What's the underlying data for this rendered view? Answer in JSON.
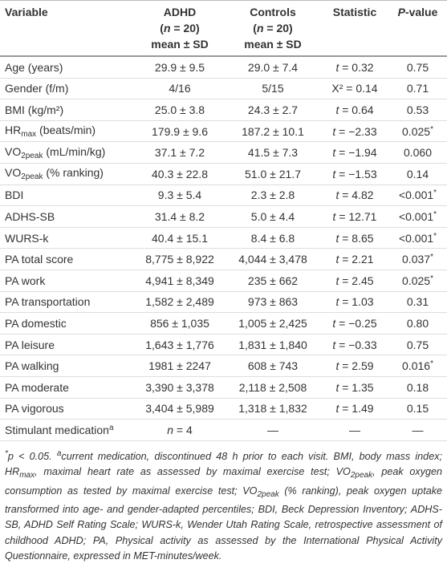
{
  "table": {
    "header": [
      [
        [
          {
            "r": "Variable"
          }
        ]
      ],
      [
        [
          {
            "r": "ADHD"
          }
        ],
        [
          {
            "r": "("
          },
          {
            "i": "n"
          },
          {
            "r": " = 20)"
          }
        ],
        [
          {
            "r": "mean ± SD"
          }
        ]
      ],
      [
        [
          {
            "r": "Controls"
          }
        ],
        [
          {
            "r": "("
          },
          {
            "i": "n"
          },
          {
            "r": " = 20)"
          }
        ],
        [
          {
            "r": "mean ± SD"
          }
        ]
      ],
      [
        [
          {
            "r": "Statistic"
          }
        ]
      ],
      [
        [
          {
            "i": "P"
          },
          {
            "r": "-value"
          }
        ]
      ]
    ],
    "rows": [
      [
        [
          {
            "r": "Age (years)"
          }
        ],
        [
          {
            "r": "29.9 ± 9.5"
          }
        ],
        [
          {
            "r": "29.0 ± 7.4"
          }
        ],
        [
          {
            "i": "t"
          },
          {
            "r": " = 0.32"
          }
        ],
        [
          {
            "r": "0.75"
          }
        ]
      ],
      [
        [
          {
            "r": "Gender (f/m)"
          }
        ],
        [
          {
            "r": "4/16"
          }
        ],
        [
          {
            "r": "5/15"
          }
        ],
        [
          {
            "r": "X² = 0.14"
          }
        ],
        [
          {
            "r": "0.71"
          }
        ]
      ],
      [
        [
          {
            "r": "BMI (kg/m²)"
          }
        ],
        [
          {
            "r": "25.0 ± 3.8"
          }
        ],
        [
          {
            "r": "24.3 ± 2.7"
          }
        ],
        [
          {
            "i": "t"
          },
          {
            "r": " = 0.64"
          }
        ],
        [
          {
            "r": "0.53"
          }
        ]
      ],
      [
        [
          {
            "r": "HR"
          },
          {
            "sub": "max"
          },
          {
            "r": " (beats/min)"
          }
        ],
        [
          {
            "r": "179.9 ± 9.6"
          }
        ],
        [
          {
            "r": "187.2 ± 10.1"
          }
        ],
        [
          {
            "i": "t"
          },
          {
            "r": " = −2.33"
          }
        ],
        [
          {
            "r": "0.025"
          },
          {
            "sup": "*"
          }
        ]
      ],
      [
        [
          {
            "r": "VO"
          },
          {
            "sub": "2peak"
          },
          {
            "r": " (mL/min/kg)"
          }
        ],
        [
          {
            "r": "37.1 ± 7.2"
          }
        ],
        [
          {
            "r": "41.5 ± 7.3"
          }
        ],
        [
          {
            "i": "t"
          },
          {
            "r": " = −1.94"
          }
        ],
        [
          {
            "r": "0.060"
          }
        ]
      ],
      [
        [
          {
            "r": "VO"
          },
          {
            "sub": "2peak"
          },
          {
            "r": " (% ranking)"
          }
        ],
        [
          {
            "r": "40.3 ± 22.8"
          }
        ],
        [
          {
            "r": "51.0 ± 21.7"
          }
        ],
        [
          {
            "i": "t"
          },
          {
            "r": " = −1.53"
          }
        ],
        [
          {
            "r": "0.14"
          }
        ]
      ],
      [
        [
          {
            "r": "BDI"
          }
        ],
        [
          {
            "r": "9.3 ± 5.4"
          }
        ],
        [
          {
            "r": "2.3 ± 2.8"
          }
        ],
        [
          {
            "i": "t"
          },
          {
            "r": " = 4.82"
          }
        ],
        [
          {
            "r": "<0.001"
          },
          {
            "sup": "*"
          }
        ]
      ],
      [
        [
          {
            "r": "ADHS-SB"
          }
        ],
        [
          {
            "r": "31.4 ± 8.2"
          }
        ],
        [
          {
            "r": "5.0 ± 4.4"
          }
        ],
        [
          {
            "i": "t"
          },
          {
            "r": " = 12.71"
          }
        ],
        [
          {
            "r": "<0.001"
          },
          {
            "sup": "*"
          }
        ]
      ],
      [
        [
          {
            "r": "WURS-k"
          }
        ],
        [
          {
            "r": "40.4 ± 15.1"
          }
        ],
        [
          {
            "r": "8.4 ± 6.8"
          }
        ],
        [
          {
            "i": "t"
          },
          {
            "r": " = 8.65"
          }
        ],
        [
          {
            "r": "<0.001"
          },
          {
            "sup": "*"
          }
        ]
      ],
      [
        [
          {
            "r": "PA total score"
          }
        ],
        [
          {
            "r": "8,775 ± 8,922"
          }
        ],
        [
          {
            "r": "4,044 ± 3,478"
          }
        ],
        [
          {
            "i": "t"
          },
          {
            "r": " = 2.21"
          }
        ],
        [
          {
            "r": "0.037"
          },
          {
            "sup": "*"
          }
        ]
      ],
      [
        [
          {
            "r": "PA work"
          }
        ],
        [
          {
            "r": "4,941 ± 8,349"
          }
        ],
        [
          {
            "r": "235 ± 662"
          }
        ],
        [
          {
            "i": "t"
          },
          {
            "r": " = 2.45"
          }
        ],
        [
          {
            "r": "0.025"
          },
          {
            "sup": "*"
          }
        ]
      ],
      [
        [
          {
            "r": "PA transportation"
          }
        ],
        [
          {
            "r": "1,582 ± 2,489"
          }
        ],
        [
          {
            "r": "973 ± 863"
          }
        ],
        [
          {
            "i": "t"
          },
          {
            "r": " = 1.03"
          }
        ],
        [
          {
            "r": "0.31"
          }
        ]
      ],
      [
        [
          {
            "r": "PA domestic"
          }
        ],
        [
          {
            "r": "856 ± 1,035"
          }
        ],
        [
          {
            "r": "1,005 ± 2,425"
          }
        ],
        [
          {
            "i": "t"
          },
          {
            "r": " = −0.25"
          }
        ],
        [
          {
            "r": "0.80"
          }
        ]
      ],
      [
        [
          {
            "r": "PA leisure"
          }
        ],
        [
          {
            "r": "1,643 ± 1,776"
          }
        ],
        [
          {
            "r": "1,831 ± 1,840"
          }
        ],
        [
          {
            "i": "t"
          },
          {
            "r": " = −0.33"
          }
        ],
        [
          {
            "r": "0.75"
          }
        ]
      ],
      [
        [
          {
            "r": "PA walking"
          }
        ],
        [
          {
            "r": "1981 ± 2247"
          }
        ],
        [
          {
            "r": "608 ± 743"
          }
        ],
        [
          {
            "i": "t"
          },
          {
            "r": " = 2.59"
          }
        ],
        [
          {
            "r": "0.016"
          },
          {
            "sup": "*"
          }
        ]
      ],
      [
        [
          {
            "r": "PA moderate"
          }
        ],
        [
          {
            "r": "3,390 ± 3,378"
          }
        ],
        [
          {
            "r": "2,118 ± 2,508"
          }
        ],
        [
          {
            "i": "t"
          },
          {
            "r": " = 1.35"
          }
        ],
        [
          {
            "r": "0.18"
          }
        ]
      ],
      [
        [
          {
            "r": "PA vigorous"
          }
        ],
        [
          {
            "r": "3,404 ± 5,989"
          }
        ],
        [
          {
            "r": "1,318 ± 1,832"
          }
        ],
        [
          {
            "i": "t"
          },
          {
            "r": " = 1.49"
          }
        ],
        [
          {
            "r": "0.15"
          }
        ]
      ],
      [
        [
          {
            "r": "Stimulant medication"
          },
          {
            "sup": "a"
          }
        ],
        [
          {
            "i": "n"
          },
          {
            "r": " = 4"
          }
        ],
        [
          {
            "r": "—"
          }
        ],
        [
          {
            "r": "—"
          }
        ],
        [
          {
            "r": "—"
          }
        ]
      ]
    ],
    "footnote": [
      {
        "sup": "*"
      },
      {
        "r": "p < 0.05. "
      },
      {
        "sup": "a"
      },
      {
        "r": "current medication, discontinued 48 h prior to each visit. BMI, body mass index; HR"
      },
      {
        "sub": "max"
      },
      {
        "r": ", maximal heart rate as assessed by maximal exercise test; VO"
      },
      {
        "sub": "2peak"
      },
      {
        "r": ", peak oxygen consumption as tested by maximal exercise test; VO"
      },
      {
        "sub": "2peak"
      },
      {
        "r": " (% ranking), peak oxygen uptake transformed into age- and gender-adapted percentiles; BDI, Beck Depression Inventory; ADHS-SB, ADHD Self Rating Scale; WURS-k, Wender Utah Rating Scale, retrospective assessment of childhood ADHD; PA, Physical activity as assessed by the International Physical Activity Questionnaire, expressed in MET-minutes/week."
      }
    ]
  }
}
